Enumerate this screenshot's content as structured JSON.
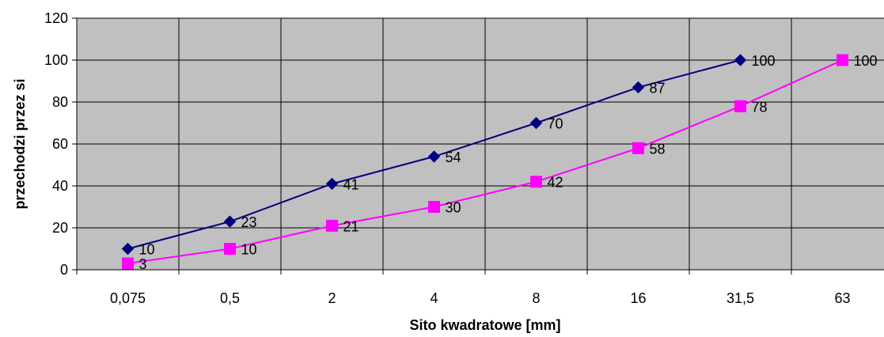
{
  "chart_data": {
    "type": "line",
    "title": "",
    "xlabel": "Sito kwadratowe [mm]",
    "ylabel": "przechodzi przez si",
    "categories": [
      "0,075",
      "0,5",
      "2",
      "4",
      "8",
      "16",
      "31,5",
      "63"
    ],
    "y_ticks": [
      "0",
      "20",
      "40",
      "60",
      "80",
      "100",
      "120"
    ],
    "ylim": [
      0,
      120
    ],
    "grid": true,
    "legend": "none",
    "plot_background": "#c0c0c0",
    "series": [
      {
        "marker": "diamond",
        "color": "#000080",
        "values": [
          10,
          23,
          41,
          54,
          70,
          87,
          100,
          null
        ],
        "labels": [
          "10",
          "23",
          "41",
          "54",
          "70",
          "87",
          "100",
          null
        ]
      },
      {
        "marker": "square",
        "color": "#ff00ff",
        "values": [
          3,
          10,
          21,
          30,
          42,
          58,
          78,
          100
        ],
        "labels": [
          "3",
          "10",
          "21",
          "30",
          "42",
          "58",
          "78",
          "100"
        ]
      }
    ]
  }
}
